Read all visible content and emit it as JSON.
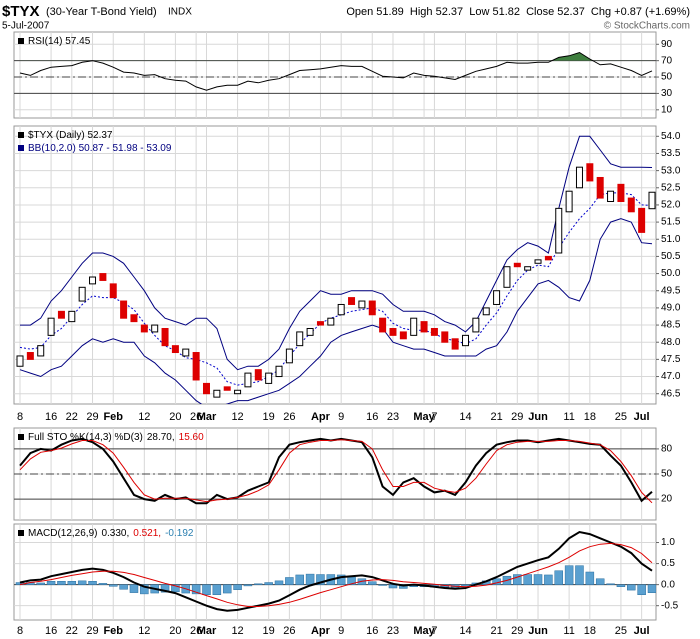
{
  "header": {
    "symbol": "$TYX",
    "name": "(30-Year T-Bond Yield)",
    "exchange": "INDX",
    "date": "5-Jul-2007",
    "quote": "Open 51.89  High 52.37  Low 51.82  Close 52.37  Chg +0.87 (+1.69%)",
    "credit": "© StockCharts.com"
  },
  "chart_data": [
    {
      "type": "line",
      "legend": [
        [
          {
            "text": "RSI(14) 57.45",
            "color": "#000000"
          }
        ]
      ],
      "ylim": [
        0,
        105
      ],
      "yticks": [
        10,
        30,
        50,
        70,
        90
      ],
      "guides": [
        {
          "value": 70,
          "style": "solid"
        },
        {
          "value": 50,
          "style": "dashdot"
        },
        {
          "value": 30,
          "style": "solid"
        }
      ],
      "series": [
        {
          "color": "#000000",
          "width": 1,
          "fill_above": 70,
          "fill_color": "#3f7f3f",
          "values": [
            55,
            52,
            58,
            62,
            63,
            64,
            68,
            70,
            67,
            62,
            56,
            55,
            52,
            53,
            48,
            46,
            45,
            38,
            34,
            38,
            40,
            40,
            45,
            43,
            46,
            48,
            53,
            58,
            59,
            60,
            62,
            64,
            63,
            63,
            57,
            51,
            50,
            49,
            55,
            52,
            51,
            49,
            47,
            52,
            57,
            60,
            63,
            68,
            67,
            67,
            68,
            68,
            74,
            76,
            80,
            72,
            65,
            66,
            62,
            58,
            52,
            57.45
          ]
        }
      ]
    },
    {
      "type": "candlestick",
      "legend": [
        [
          {
            "text": "$TYX (Daily) 52.37",
            "color": "#000000"
          }
        ],
        [
          {
            "text": "BB(10,2.0) 50.87 - 51.98 - 53.09",
            "color": "#000080"
          }
        ]
      ],
      "categories": [
        "8",
        null,
        null,
        "16",
        null,
        "22",
        null,
        "29",
        null,
        "Feb",
        null,
        null,
        "12",
        null,
        null,
        "20",
        null,
        "26",
        "Mar",
        null,
        null,
        "12",
        null,
        null,
        "19",
        null,
        "26",
        null,
        null,
        "Apr",
        null,
        "9",
        null,
        null,
        "16",
        null,
        "23",
        null,
        null,
        "May",
        "7",
        null,
        null,
        "14",
        null,
        null,
        "21",
        null,
        "29",
        null,
        "Jun",
        null,
        null,
        "11",
        null,
        "18",
        null,
        null,
        "25",
        null,
        "Jul",
        null
      ],
      "ylim": [
        46.2,
        54.3
      ],
      "yticks": [
        46.5,
        {
          "value": 47,
          "label": "47.0"
        },
        47.5,
        {
          "value": 48,
          "label": "48.0"
        },
        48.5,
        {
          "value": 49,
          "label": "49.0"
        },
        49.5,
        {
          "value": 50,
          "label": "50.0"
        },
        50.5,
        {
          "value": 51,
          "label": "51.0"
        },
        51.5,
        {
          "value": 52,
          "label": "52.0"
        },
        52.5,
        {
          "value": 53,
          "label": "53.0"
        },
        53.5,
        {
          "value": 54,
          "label": "54.0"
        }
      ],
      "series": [
        {
          "color": "#000080",
          "width": 1,
          "values": [
            48.5,
            48.5,
            48.7,
            49.2,
            49.5,
            49.9,
            50.3,
            50.6,
            50.6,
            50.5,
            50.3,
            49.9,
            49.5,
            49.0,
            48.7,
            48.6,
            48.5,
            48.7,
            48.7,
            48.4,
            47.5,
            47.2,
            47.3,
            47.3,
            47.5,
            47.8,
            48.4,
            48.9,
            49.2,
            49.5,
            49.4,
            49.4,
            49.5,
            49.5,
            49.5,
            49.4,
            49.1,
            48.9,
            48.9,
            48.9,
            48.8,
            48.6,
            48.5,
            48.3,
            48.6,
            49.2,
            49.8,
            50.4,
            50.7,
            50.9,
            50.8,
            50.6,
            51.9,
            53.1,
            54.0,
            54.0,
            53.6,
            53.2,
            53.1,
            53.1,
            53.1,
            53.09
          ]
        },
        {
          "color": "#000080",
          "width": 1,
          "values": [
            47.2,
            47.1,
            47.0,
            47.2,
            47.3,
            47.6,
            47.9,
            48.1,
            48.0,
            48.1,
            48.0,
            48.0,
            47.6,
            47.4,
            47.1,
            46.9,
            46.6,
            46.3,
            46.1,
            46.1,
            46.2,
            46.3,
            46.3,
            46.4,
            46.5,
            46.6,
            46.8,
            47.0,
            47.3,
            47.6,
            48.0,
            48.2,
            48.3,
            48.4,
            48.5,
            48.4,
            48.0,
            47.9,
            47.8,
            47.8,
            47.7,
            47.6,
            47.6,
            47.6,
            47.6,
            47.8,
            47.9,
            48.3,
            48.9,
            49.3,
            49.7,
            49.8,
            49.6,
            49.3,
            49.2,
            49.8,
            51.0,
            51.5,
            51.6,
            51.5,
            50.9,
            50.87
          ]
        },
        {
          "color": "#0000cc",
          "width": 1,
          "dash": true,
          "values": [
            47.85,
            47.8,
            47.85,
            48.2,
            48.4,
            48.75,
            49.1,
            49.35,
            49.3,
            49.3,
            49.15,
            48.95,
            48.55,
            48.2,
            47.9,
            47.75,
            47.55,
            47.5,
            47.4,
            47.25,
            46.85,
            46.75,
            46.8,
            46.85,
            47.0,
            47.2,
            47.6,
            47.95,
            48.25,
            48.55,
            48.7,
            48.8,
            48.9,
            48.95,
            49.0,
            48.9,
            48.55,
            48.4,
            48.35,
            48.35,
            48.25,
            48.1,
            48.05,
            47.95,
            48.1,
            48.5,
            48.85,
            49.35,
            49.8,
            50.1,
            50.25,
            50.2,
            50.75,
            51.2,
            51.6,
            51.9,
            52.3,
            52.35,
            52.35,
            52.3,
            52.0,
            51.98
          ]
        },
        {
          "up_color": "#000000",
          "down_color": "#dd0000",
          "open": [
            47.3,
            47.7,
            47.6,
            48.2,
            48.9,
            48.6,
            49.2,
            49.7,
            50.0,
            49.7,
            49.2,
            48.8,
            48.5,
            48.3,
            48.4,
            47.9,
            47.6,
            47.7,
            46.8,
            46.4,
            46.7,
            46.5,
            46.7,
            47.2,
            46.8,
            47.0,
            47.4,
            47.9,
            48.2,
            48.6,
            48.5,
            48.8,
            49.3,
            49.0,
            49.2,
            48.7,
            48.4,
            48.3,
            48.2,
            48.6,
            48.4,
            48.3,
            48.1,
            47.9,
            48.3,
            48.8,
            49.1,
            49.6,
            50.3,
            50.1,
            50.3,
            50.5,
            50.6,
            51.8,
            52.5,
            53.2,
            52.8,
            52.1,
            52.6,
            52.2,
            51.9,
            51.89
          ],
          "close": [
            47.6,
            47.5,
            47.9,
            48.7,
            48.7,
            48.9,
            49.6,
            49.9,
            49.8,
            49.3,
            48.7,
            48.6,
            48.3,
            48.5,
            47.9,
            47.7,
            47.8,
            46.9,
            46.5,
            46.6,
            46.6,
            46.6,
            47.1,
            46.9,
            47.1,
            47.3,
            47.8,
            48.3,
            48.4,
            48.5,
            48.7,
            49.1,
            49.1,
            49.2,
            48.8,
            48.3,
            48.2,
            48.1,
            48.7,
            48.3,
            48.2,
            48.0,
            47.8,
            48.2,
            48.7,
            49.0,
            49.5,
            50.2,
            50.2,
            50.2,
            50.4,
            50.4,
            51.9,
            52.4,
            53.1,
            52.7,
            52.2,
            52.4,
            52.1,
            51.8,
            51.2,
            52.37
          ]
        }
      ]
    },
    {
      "type": "line",
      "legend": [
        [
          {
            "text": "Full STO %K(14,3) %D(3)",
            "color": "#000000"
          },
          {
            "text": "28.70,",
            "color": "#000000"
          },
          {
            "text": "15.60",
            "color": "#dd0000"
          }
        ]
      ],
      "ylim": [
        -5,
        105
      ],
      "yticks": [
        20,
        50,
        80
      ],
      "guides": [
        {
          "value": 80,
          "style": "solid"
        },
        {
          "value": 50,
          "style": "dashdot"
        },
        {
          "value": 20,
          "style": "solid"
        }
      ],
      "series": [
        {
          "color": "#000000",
          "width": 2,
          "values": [
            60,
            75,
            80,
            78,
            85,
            90,
            92,
            88,
            80,
            65,
            45,
            25,
            20,
            18,
            25,
            20,
            22,
            15,
            15,
            25,
            20,
            22,
            30,
            35,
            40,
            70,
            85,
            88,
            90,
            92,
            90,
            92,
            90,
            88,
            70,
            35,
            25,
            40,
            45,
            35,
            28,
            30,
            25,
            40,
            60,
            75,
            85,
            88,
            90,
            90,
            88,
            90,
            92,
            90,
            88,
            86,
            85,
            72,
            60,
            40,
            18,
            28.7
          ]
        },
        {
          "color": "#dd0000",
          "width": 1,
          "values": [
            55,
            68,
            76,
            78,
            81,
            86,
            90,
            90,
            85,
            75,
            58,
            40,
            25,
            20,
            21,
            21,
            21,
            19,
            17,
            19,
            20,
            22,
            25,
            30,
            37,
            55,
            75,
            85,
            88,
            90,
            90,
            91,
            90,
            89,
            80,
            55,
            35,
            35,
            40,
            40,
            33,
            30,
            28,
            33,
            45,
            62,
            78,
            85,
            88,
            89,
            89,
            89,
            90,
            90,
            89,
            87,
            85,
            78,
            65,
            48,
            28,
            15.6
          ]
        }
      ]
    },
    {
      "type": "combo",
      "legend": [
        [
          {
            "text": "MACD(12,26,9)",
            "color": "#000000"
          },
          {
            "text": "0.330,",
            "color": "#000000"
          },
          {
            "text": "0.521,",
            "color": "#dd0000"
          },
          {
            "text": "-0.192",
            "color": "#2a7fb0"
          }
        ]
      ],
      "ylim": [
        -0.84,
        1.44
      ],
      "yticks": [
        -0.5,
        {
          "value": 0,
          "label": "0.0"
        },
        0.5,
        {
          "value": 1,
          "label": "1.0"
        }
      ],
      "guides": [
        {
          "value": 0,
          "style": "solid"
        }
      ],
      "series": [
        {
          "type": "bar",
          "color": "#5aa0d0",
          "values": [
            0.05,
            0.05,
            0.04,
            0.08,
            0.08,
            0.08,
            0.09,
            0.08,
            0.03,
            -0.04,
            -0.11,
            -0.19,
            -0.22,
            -0.2,
            -0.18,
            -0.17,
            -0.2,
            -0.22,
            -0.24,
            -0.24,
            -0.2,
            -0.12,
            -0.03,
            0.02,
            0.05,
            0.09,
            0.17,
            0.23,
            0.25,
            0.24,
            0.24,
            0.23,
            0.18,
            0.14,
            0.07,
            -0.02,
            -0.08,
            -0.09,
            -0.05,
            -0.05,
            -0.06,
            -0.06,
            -0.06,
            -0.03,
            0.04,
            0.09,
            0.14,
            0.2,
            0.24,
            0.24,
            0.24,
            0.23,
            0.33,
            0.45,
            0.45,
            0.3,
            0.14,
            0.02,
            -0.05,
            -0.13,
            -0.24,
            -0.192
          ]
        },
        {
          "color": "#000000",
          "width": 2,
          "values": [
            0.05,
            0.1,
            0.12,
            0.2,
            0.25,
            0.3,
            0.35,
            0.38,
            0.35,
            0.28,
            0.18,
            0.05,
            -0.05,
            -0.1,
            -0.15,
            -0.2,
            -0.3,
            -0.4,
            -0.5,
            -0.58,
            -0.62,
            -0.6,
            -0.55,
            -0.5,
            -0.45,
            -0.38,
            -0.25,
            -0.12,
            -0.02,
            0.05,
            0.12,
            0.18,
            0.2,
            0.22,
            0.18,
            0.1,
            0.02,
            -0.02,
            0.0,
            -0.02,
            -0.05,
            -0.08,
            -0.1,
            -0.08,
            0.0,
            0.08,
            0.18,
            0.3,
            0.42,
            0.5,
            0.58,
            0.65,
            0.85,
            1.1,
            1.25,
            1.2,
            1.1,
            1.0,
            0.9,
            0.75,
            0.5,
            0.33
          ]
        },
        {
          "color": "#dd0000",
          "width": 1,
          "values": [
            0.0,
            0.05,
            0.08,
            0.12,
            0.17,
            0.22,
            0.26,
            0.3,
            0.32,
            0.32,
            0.29,
            0.24,
            0.17,
            0.1,
            0.03,
            -0.03,
            -0.1,
            -0.18,
            -0.26,
            -0.34,
            -0.42,
            -0.48,
            -0.52,
            -0.52,
            -0.5,
            -0.47,
            -0.42,
            -0.35,
            -0.27,
            -0.19,
            -0.12,
            -0.05,
            0.02,
            0.08,
            0.11,
            0.12,
            0.1,
            0.07,
            0.05,
            0.03,
            0.01,
            -0.02,
            -0.04,
            -0.05,
            -0.04,
            -0.01,
            0.04,
            0.1,
            0.18,
            0.26,
            0.34,
            0.42,
            0.52,
            0.65,
            0.8,
            0.9,
            0.96,
            0.98,
            0.95,
            0.88,
            0.74,
            0.521
          ]
        }
      ]
    }
  ]
}
